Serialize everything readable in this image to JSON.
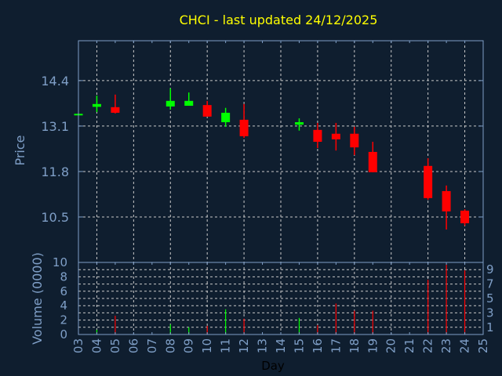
{
  "chart_data": {
    "type": "candlestick",
    "title": "CHCI - last updated 24/12/2025",
    "xlabel": "Day",
    "ylabel": "Price",
    "volume_ylabel": "Volume (0000)",
    "x_ticks": [
      "03",
      "04",
      "05",
      "06",
      "07",
      "08",
      "09",
      "10",
      "11",
      "12",
      "13",
      "14",
      "15",
      "16",
      "17",
      "18",
      "19",
      "20",
      "21",
      "22",
      "23",
      "24",
      "25"
    ],
    "y_ticks": [
      14.4,
      13.1,
      11.8,
      10.5
    ],
    "ylim": [
      9.2,
      15.54
    ],
    "volume_ticks": [
      0,
      1,
      2,
      3,
      4,
      5,
      6,
      7,
      8,
      9,
      10
    ],
    "volume_ylim": [
      0,
      10
    ],
    "xlim": [
      3,
      25
    ],
    "grid": true,
    "colors": {
      "background": "#0f1e2f",
      "up": "#00ff00",
      "down": "#ff0000",
      "title": "#ffff00",
      "axis": "#7f9fc7",
      "grid": "#c8c8c8"
    },
    "candles": [
      {
        "day": 3,
        "open": 13.43,
        "close": 13.45,
        "high": 13.46,
        "low": 13.42,
        "volume": 0
      },
      {
        "day": 4,
        "open": 13.65,
        "close": 13.73,
        "high": 13.97,
        "low": 13.5,
        "volume": 0.65
      },
      {
        "day": 5,
        "open": 13.64,
        "close": 13.48,
        "high": 14.0,
        "low": 13.46,
        "volume": 2.6
      },
      {
        "day": 8,
        "open": 13.66,
        "close": 13.82,
        "high": 14.18,
        "low": 13.57,
        "volume": 1.4
      },
      {
        "day": 9,
        "open": 13.68,
        "close": 13.82,
        "high": 14.06,
        "low": 13.68,
        "volume": 1.0
      },
      {
        "day": 10,
        "open": 13.7,
        "close": 13.37,
        "high": 13.82,
        "low": 13.37,
        "volume": 1.2
      },
      {
        "day": 11,
        "open": 13.21,
        "close": 13.48,
        "high": 13.62,
        "low": 13.08,
        "volume": 3.5
      },
      {
        "day": 12,
        "open": 13.28,
        "close": 12.81,
        "high": 13.73,
        "low": 12.76,
        "volume": 2.2
      },
      {
        "day": 15,
        "open": 13.14,
        "close": 13.21,
        "high": 13.32,
        "low": 12.97,
        "volume": 2.3
      },
      {
        "day": 16,
        "open": 12.99,
        "close": 12.65,
        "high": 13.19,
        "low": 12.47,
        "volume": 1.3
      },
      {
        "day": 17,
        "open": 12.88,
        "close": 12.72,
        "high": 13.19,
        "low": 12.4,
        "volume": 4.3
      },
      {
        "day": 18,
        "open": 12.88,
        "close": 12.49,
        "high": 13.08,
        "low": 12.27,
        "volume": 3.3
      },
      {
        "day": 19,
        "open": 12.36,
        "close": 11.78,
        "high": 12.65,
        "low": 11.78,
        "volume": 3.3
      },
      {
        "day": 22,
        "open": 11.96,
        "close": 11.04,
        "high": 12.18,
        "low": 10.99,
        "volume": 7.6
      },
      {
        "day": 23,
        "open": 11.24,
        "close": 10.66,
        "high": 11.4,
        "low": 10.14,
        "volume": 9.7
      },
      {
        "day": 24,
        "open": 10.68,
        "close": 10.32,
        "high": 10.72,
        "low": 10.25,
        "volume": 8.9
      }
    ]
  }
}
